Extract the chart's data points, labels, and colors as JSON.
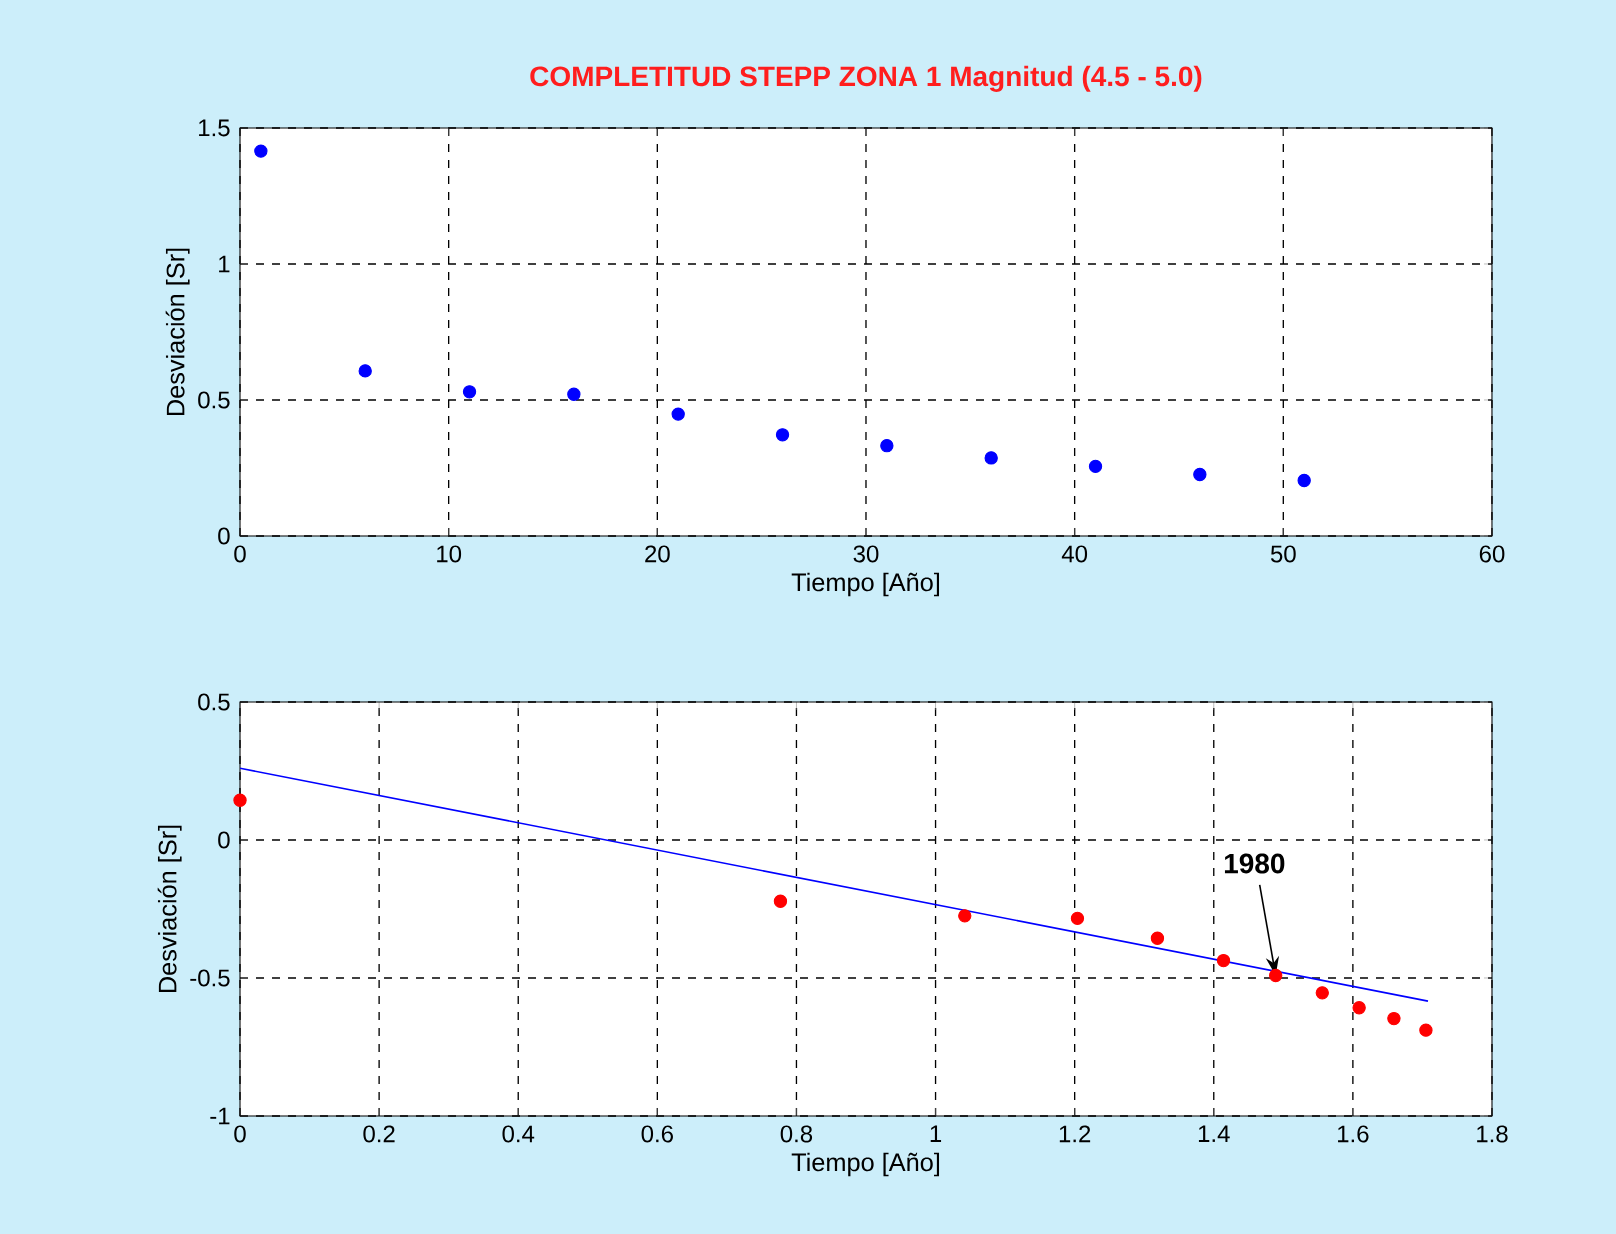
{
  "chart_data": [
    {
      "type": "scatter",
      "title": "COMPLETITUD STEPP ZONA 1 Magnitud (4.5 - 5.0)",
      "xlabel": "Tiempo [Año]",
      "ylabel": "Desviación [Sr]",
      "x": [
        1,
        6,
        11,
        16,
        21,
        26,
        31,
        36,
        41,
        46,
        51
      ],
      "series": [
        {
          "color": "#0000ff",
          "values": [
            1.415,
            0.607,
            0.53,
            0.521,
            0.448,
            0.372,
            0.332,
            0.287,
            0.256,
            0.226,
            0.204
          ]
        }
      ],
      "xlim": [
        0,
        60
      ],
      "ylim": [
        0,
        1.5
      ],
      "xticks": [
        0,
        10,
        20,
        30,
        40,
        50,
        60
      ],
      "yticks": [
        0,
        0.5,
        1,
        1.5
      ],
      "grid": true
    },
    {
      "type": "scatter",
      "xlabel": "Tiempo [Año]",
      "ylabel": "Desviación [Sr]",
      "series": [
        {
          "color": "#ff0000",
          "x": [
            0,
            0.777,
            1.042,
            1.204,
            1.319,
            1.414,
            1.489,
            1.556,
            1.609,
            1.659,
            1.705
          ],
          "values": [
            0.144,
            -0.222,
            -0.275,
            -0.284,
            -0.356,
            -0.437,
            -0.491,
            -0.554,
            -0.608,
            -0.647,
            -0.689
          ]
        },
        {
          "type": "line",
          "color": "#0000ff",
          "x": [
            0,
            1.708
          ],
          "values": [
            0.26,
            -0.584
          ]
        }
      ],
      "annotations": [
        {
          "text": "1980",
          "x": 1.489,
          "y": -0.491
        }
      ],
      "xlim": [
        0,
        1.8
      ],
      "ylim": [
        -1,
        0.5
      ],
      "xticks": [
        0,
        0.2,
        0.4,
        0.6,
        0.8,
        1,
        1.2,
        1.4,
        1.6,
        1.8
      ],
      "yticks": [
        -1,
        -0.5,
        0,
        0.5
      ],
      "grid": true
    }
  ]
}
